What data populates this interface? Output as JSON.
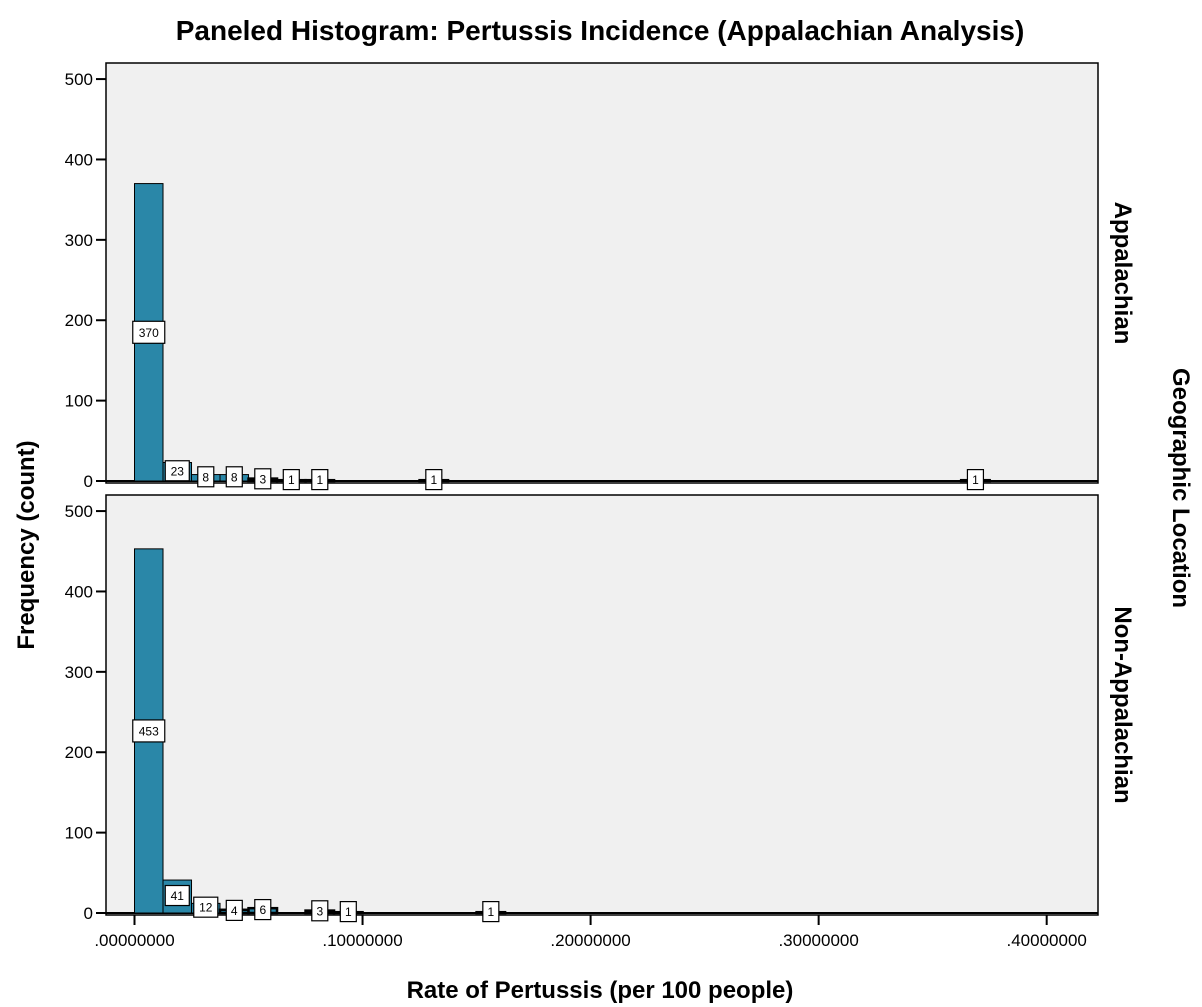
{
  "chart_data": {
    "type": "bar",
    "title": "Paneled Histogram: Pertussis Incidence (Appalachian Analysis)",
    "xlabel": "Rate of Pertussis (per 100 people)",
    "ylabel": "Frequency (count)",
    "facet_label": "Geographic Location",
    "xlim": [
      -0.0125,
      0.4225
    ],
    "x_ticks": [
      {
        "value": 0.0,
        "label": ".00000000"
      },
      {
        "value": 0.1,
        "label": ".10000000"
      },
      {
        "value": 0.2,
        "label": ".20000000"
      },
      {
        "value": 0.3,
        "label": ".30000000"
      },
      {
        "value": 0.4,
        "label": ".40000000"
      }
    ],
    "ylim": [
      0,
      520
    ],
    "y_ticks": [
      0,
      100,
      200,
      300,
      400,
      500
    ],
    "bin_width": 0.0125,
    "colors": {
      "bar": "#2a87a8",
      "panel_bg": "#f0f0f0",
      "panel_border": "#000000"
    },
    "panels": [
      {
        "name": "Appalachian",
        "bins": [
          {
            "x": 0.00625,
            "count": 370,
            "label": "370"
          },
          {
            "x": 0.01875,
            "count": 23,
            "label": "23"
          },
          {
            "x": 0.03125,
            "count": 8,
            "label": "8"
          },
          {
            "x": 0.04375,
            "count": 8,
            "label": "8"
          },
          {
            "x": 0.05625,
            "count": 3,
            "label": "3"
          },
          {
            "x": 0.06875,
            "count": 1,
            "label": "1"
          },
          {
            "x": 0.08125,
            "count": 1,
            "label": "1"
          },
          {
            "x": 0.13125,
            "count": 1,
            "label": "1"
          },
          {
            "x": 0.36875,
            "count": 1,
            "label": "1"
          }
        ]
      },
      {
        "name": "Non-Appalachian",
        "bins": [
          {
            "x": 0.00625,
            "count": 453,
            "label": "453"
          },
          {
            "x": 0.01875,
            "count": 41,
            "label": "41"
          },
          {
            "x": 0.03125,
            "count": 12,
            "label": "12"
          },
          {
            "x": 0.04375,
            "count": 4,
            "label": "4"
          },
          {
            "x": 0.05625,
            "count": 6,
            "label": "6"
          },
          {
            "x": 0.08125,
            "count": 3,
            "label": "3"
          },
          {
            "x": 0.09375,
            "count": 1,
            "label": "1"
          },
          {
            "x": 0.15625,
            "count": 1,
            "label": "1"
          }
        ]
      }
    ]
  }
}
